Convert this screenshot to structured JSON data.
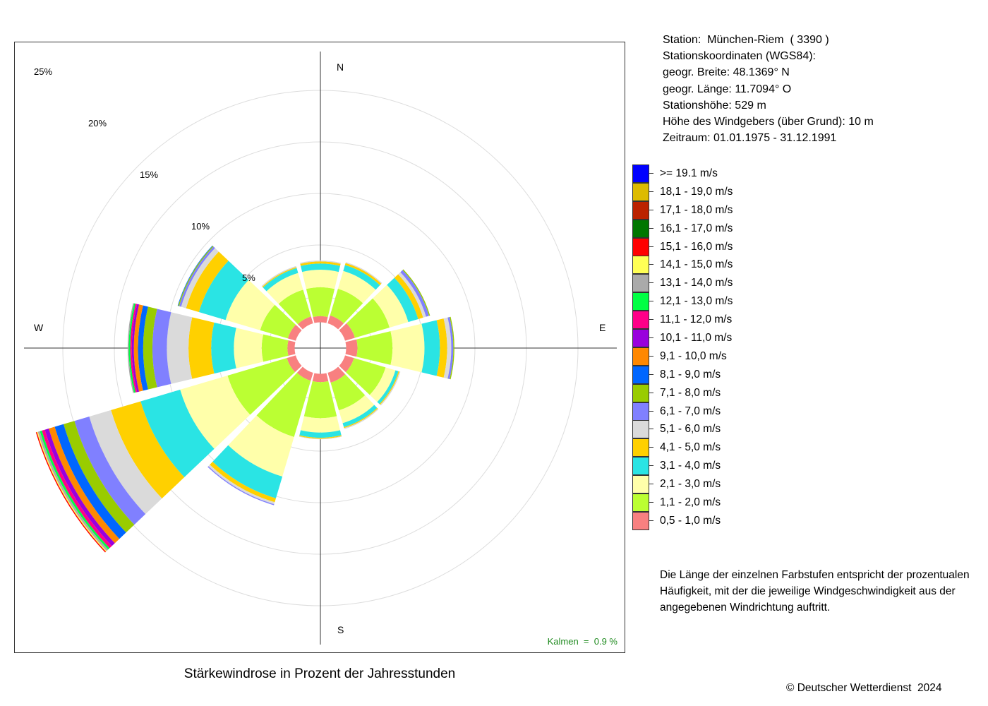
{
  "station": {
    "line1": "Station:  München-Riem  ( 3390 )",
    "line2": "Stationskoordinaten (WGS84):",
    "line3": "geogr. Breite: 48.1369° N",
    "line4": "geogr. Länge: 11.7094° O",
    "line5": "Stationshöhe: 529 m",
    "line6": "Höhe des Windgebers (über Grund): 10 m",
    "line7": "Zeitraum: 01.01.1975 - 31.12.1991"
  },
  "note": {
    "line1": "Die Länge der einzelnen Farbstufen entspricht der prozentualen",
    "line2": "Häufigkeit, mit der die jeweilige Windgeschwindigkeit aus der",
    "line3": "angegebenen Windrichtung auftritt."
  },
  "copyright": "© Deutscher Wetterdienst  2024",
  "kalmen": "Kalmen  =  0.9 %",
  "chart_data": {
    "type": "polar-stacked-bar",
    "title": "Stärkewindrose in Prozent der Jahresstunden",
    "radial_unit": "%",
    "radial_ticks": [
      5,
      10,
      15,
      20,
      25
    ],
    "radial_tick_labels": [
      "5%",
      "10%",
      "15%",
      "20%",
      "25%"
    ],
    "directions": [
      "N",
      "NNO",
      "ONO",
      "O",
      "OSO",
      "SSO",
      "S",
      "SSW",
      "WSW",
      "W",
      "WNW",
      "NNW"
    ],
    "direction_angles_deg": [
      0,
      30,
      60,
      90,
      120,
      150,
      180,
      210,
      240,
      270,
      300,
      330
    ],
    "compass_labels": [
      "N",
      "E",
      "S",
      "W"
    ],
    "calm_hole_percent": 2.5,
    "speed_classes": [
      {
        "label": "0,5 - 1,0 m/s",
        "color": "#F88080"
      },
      {
        "label": "1,1 - 2,0 m/s",
        "color": "#BBFF33"
      },
      {
        "label": "2,1 - 3,0 m/s",
        "color": "#FFFFAA"
      },
      {
        "label": "3,1 - 4,0 m/s",
        "color": "#2AE4E4"
      },
      {
        "label": "4,1 - 5,0 m/s",
        "color": "#FFD000"
      },
      {
        "label": "5,1 - 6,0 m/s",
        "color": "#DADADA"
      },
      {
        "label": "6,1 - 7,0 m/s",
        "color": "#8080FF"
      },
      {
        "label": "7,1 - 8,0 m/s",
        "color": "#99CC00"
      },
      {
        "label": "8,1 - 9,0 m/s",
        "color": "#0066FF"
      },
      {
        "label": "9,1 - 10,0 m/s",
        "color": "#FF8800"
      },
      {
        "label": "10,1 - 11,0 m/s",
        "color": "#9900DD"
      },
      {
        "label": "11,1 - 12,0 m/s",
        "color": "#FF0088"
      },
      {
        "label": "12,1 - 13,0 m/s",
        "color": "#00FF44"
      },
      {
        "label": "13,1 - 14,0 m/s",
        "color": "#AAAAAA"
      },
      {
        "label": "14,1 - 15,0 m/s",
        "color": "#FFFF55"
      },
      {
        "label": "15,1 - 16,0 m/s",
        "color": "#FF0000"
      },
      {
        "label": "16,1 - 17,0 m/s",
        "color": "#007700"
      },
      {
        "label": "17,1 - 18,0 m/s",
        "color": "#BB2200"
      },
      {
        "label": "18,1 - 19,0 m/s",
        "color": "#DDBB00"
      },
      {
        "label": ">= 19.1 m/s",
        "color": "#0000FF"
      }
    ],
    "series_cumulative_percent": [
      [
        3.1,
        5.9,
        7.6,
        8.2,
        8.4,
        8.5
      ],
      [
        3.3,
        6.0,
        7.8,
        8.4,
        8.6,
        8.7
      ],
      [
        3.5,
        7.0,
        8.9,
        9.9,
        10.4,
        10.7,
        11.0,
        11.1
      ],
      [
        3.6,
        7.0,
        10.1,
        11.6,
        12.3,
        12.7,
        12.9,
        13.0
      ],
      [
        3.4,
        6.6,
        7.6,
        7.9,
        8.0,
        8.1
      ],
      [
        3.5,
        6.3,
        7.6,
        8.0,
        8.1,
        8.2
      ],
      [
        3.3,
        6.8,
        8.2,
        8.7,
        8.8,
        8.85
      ],
      [
        3.3,
        9.0,
        13.0,
        15.2,
        15.6,
        15.8,
        15.9
      ],
      [
        3.4,
        9.4,
        14.2,
        18.2,
        21.2,
        23.4,
        24.9,
        26.0,
        26.9,
        27.5,
        27.9,
        28.2,
        28.4,
        28.6,
        28.7,
        28.8
      ],
      [
        3.2,
        5.7,
        8.4,
        10.6,
        12.8,
        14.9,
        16.3,
        17.2,
        17.7,
        18.1,
        18.3,
        18.45,
        18.6,
        18.7
      ],
      [
        3.3,
        6.1,
        9.6,
        12.3,
        13.6,
        14.1,
        14.3,
        14.4,
        14.45
      ],
      [
        3.2,
        5.9,
        7.6,
        8.1,
        8.2,
        8.3
      ]
    ]
  }
}
